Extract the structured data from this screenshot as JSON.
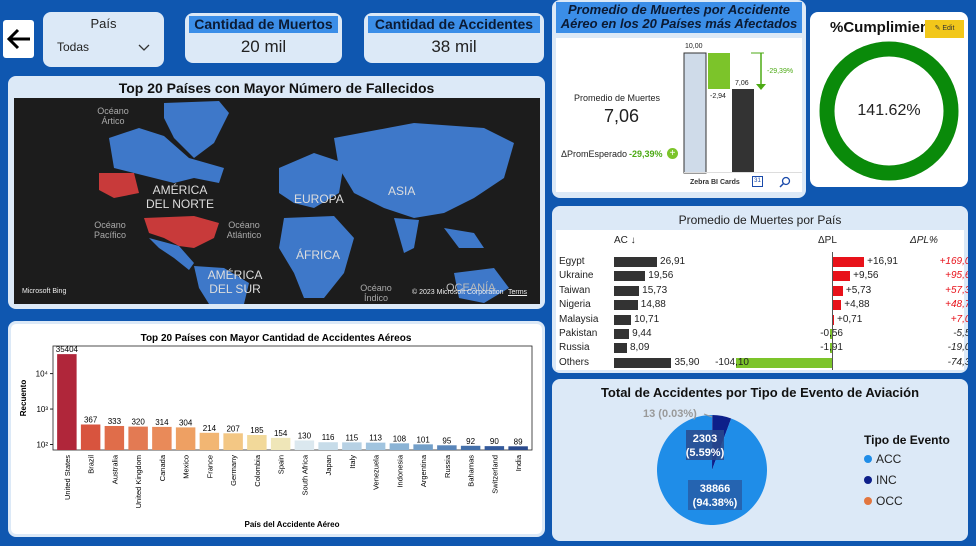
{
  "filters": {
    "pais_label": "País",
    "pais_value": "Todas"
  },
  "kpis": {
    "muertes": {
      "label": "Cantidad de Muertos",
      "value": "20 mil"
    },
    "accidentes": {
      "label": "Cantidad de Accidentes",
      "value": "38 mil"
    }
  },
  "map": {
    "title": "Top 20 Países con Mayor Número de Fallecidos",
    "labels": {
      "america_norte": "AMÉRICA DEL NORTE",
      "europa": "EUROPA",
      "asia": "ASIA",
      "africa": "ÁFRICA",
      "america_sur": "AMÉRICA DEL SUR",
      "oceania": "OCEANÍA",
      "oc_artico": "Océano Ártico",
      "oc_pacifico": "Océano Pacífico",
      "oc_atlantico": "Océano Atlántico",
      "oc_indico": "Océano Índico"
    },
    "bing": "Microsoft Bing",
    "copyright": "© 2023 Microsoft Corporation",
    "terms": "Terms"
  },
  "zebra": {
    "title": "Promedio de Muertes por Accidente Aéreo en los 20 Países más Afectados",
    "metric_label": "Promedio de Muertes",
    "metric_value": "7,06",
    "delta_label": "ΔPromEsperado",
    "delta_value": "-29,39%",
    "bar_top": "10,00",
    "bar_delta": "-2,94",
    "bar_end": "7,06",
    "arrow_pct": "-29,39%",
    "footer": "Zebra BI Cards"
  },
  "gauge": {
    "title": "%Cumplimiento",
    "value": "141.62%",
    "edit": "✎ Edit",
    "fraction": 1.0,
    "color": "#0a8a0a"
  },
  "table": {
    "title": "Promedio de Muertes por País",
    "col_ac": "AC ↓",
    "col_pl": "ΔPL",
    "col_plpct": "ΔPL%",
    "rows": [
      {
        "country": "Egypt",
        "ac": "26,91",
        "ac_num": 26.91,
        "pl": "+16,91",
        "pl_num": 16.91,
        "pct": "+169,09"
      },
      {
        "country": "Ukraine",
        "ac": "19,56",
        "ac_num": 19.56,
        "pl": "+9,56",
        "pl_num": 9.56,
        "pct": "+95,63"
      },
      {
        "country": "Taiwan",
        "ac": "15,73",
        "ac_num": 15.73,
        "pl": "+5,73",
        "pl_num": 5.73,
        "pct": "+57,31"
      },
      {
        "country": "Nigeria",
        "ac": "14,88",
        "ac_num": 14.88,
        "pl": "+4,88",
        "pl_num": 4.88,
        "pct": "+48,75"
      },
      {
        "country": "Malaysia",
        "ac": "10,71",
        "ac_num": 10.71,
        "pl": "+0,71",
        "pl_num": 0.71,
        "pct": "+7,08"
      },
      {
        "country": "Pakistan",
        "ac": "9,44",
        "ac_num": 9.44,
        "pl": "-0,56",
        "pl_num": -0.56,
        "pct": "-5,58"
      },
      {
        "country": "Russia",
        "ac": "8,09",
        "ac_num": 8.09,
        "pl": "-1,91",
        "pl_num": -1.91,
        "pct": "-19,05"
      },
      {
        "country": "Others",
        "ac": "35,90",
        "ac_num": 35.9,
        "pl": "-104,10",
        "pl_num": -104.1,
        "pct": "-74,35"
      }
    ]
  },
  "chart_data": [
    {
      "type": "bar",
      "title": "Top 20 Países con Mayor Cantidad de Accidentes Aéreos",
      "xlabel": "País del Accidente Aéreo",
      "ylabel": "Recuento",
      "yscale": "log",
      "ylim": [
        70,
        60000
      ],
      "yticks": [
        "10²",
        "10³",
        "10⁴"
      ],
      "categories": [
        "United States",
        "Brazil",
        "Australia",
        "United Kingdom",
        "Canada",
        "Mexico",
        "France",
        "Germany",
        "Colombia",
        "Spain",
        "South Africa",
        "Japan",
        "Italy",
        "Venezuela",
        "Indonesia",
        "Argentina",
        "Russia",
        "Bahamas",
        "Switzerland",
        "India"
      ],
      "values": [
        35404,
        367,
        333,
        320,
        314,
        304,
        214,
        207,
        185,
        154,
        130,
        116,
        115,
        113,
        108,
        101,
        95,
        92,
        90,
        89
      ],
      "labels": [
        "35404",
        "367",
        "333",
        "320",
        "314",
        "304",
        "214",
        "207",
        "185",
        "154",
        "130",
        "116",
        "115",
        "113",
        "108",
        "101",
        "95",
        "92",
        "90",
        "89"
      ],
      "colors": [
        "#b0263a",
        "#d8543e",
        "#e06d4a",
        "#e37a53",
        "#e98a59",
        "#eea063",
        "#f2b673",
        "#f3c784",
        "#f2d99a",
        "#efe6b8",
        "#dbe8ef",
        "#c7dce9",
        "#b7d1e4",
        "#a1c4df",
        "#8ab3d5",
        "#739fc8",
        "#5a86ba",
        "#4470aa",
        "#345a9b",
        "#2a4a8c"
      ]
    },
    {
      "type": "pie",
      "title": "Total de Accidentes por Tipo de Evento de Aviación",
      "legend_title": "Tipo de Evento",
      "legend_position": "right",
      "slices": [
        {
          "name": "ACC",
          "value": 38866,
          "label": "38866",
          "pct": "(94.38%)",
          "color": "#1f8de8"
        },
        {
          "name": "INC",
          "value": 2303,
          "label": "2303",
          "pct": "(5.59%)",
          "color": "#0d1f8a"
        },
        {
          "name": "OCC",
          "value": 13,
          "label": "13 (0.03%)",
          "color": "#e2763f"
        }
      ]
    }
  ]
}
